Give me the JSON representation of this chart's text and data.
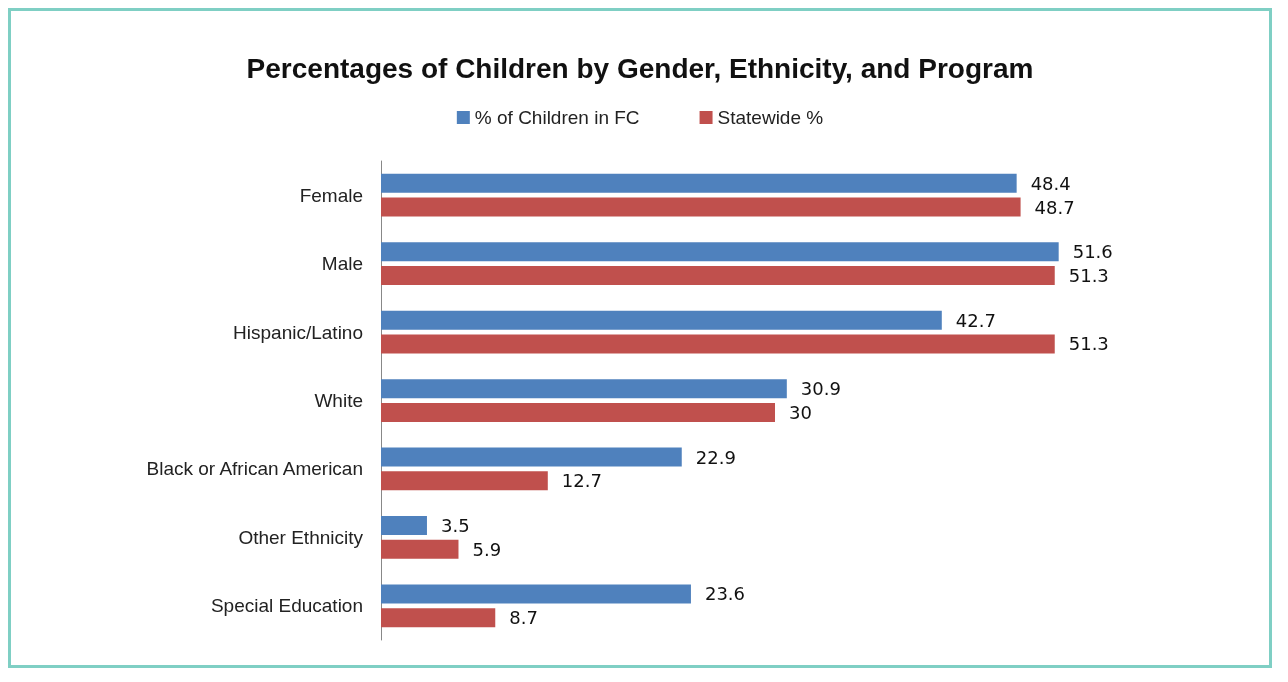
{
  "chart_data": {
    "type": "bar",
    "orientation": "horizontal",
    "title": "Percentages of Children by Gender, Ethnicity, and Program",
    "categories": [
      "Female",
      "Male",
      "Hispanic/Latino",
      "White",
      "Black or African American",
      "Other Ethnicity",
      "Special Education"
    ],
    "series": [
      {
        "name": "% of Children in FC",
        "color": "#4f81bd",
        "values": [
          48.4,
          51.6,
          42.7,
          30.9,
          22.9,
          3.5,
          23.6
        ]
      },
      {
        "name": "Statewide %",
        "color": "#c0504d",
        "values": [
          48.7,
          51.3,
          51.3,
          30,
          12.7,
          5.9,
          8.7
        ]
      }
    ],
    "data_labels": true,
    "legend": "top"
  }
}
